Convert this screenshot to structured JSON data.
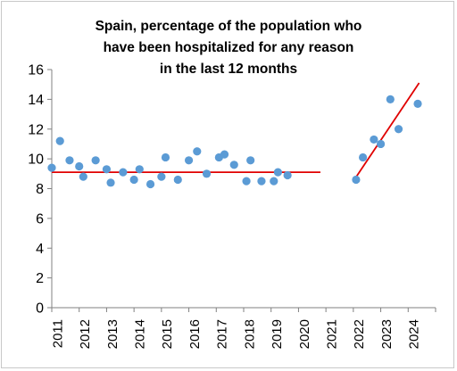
{
  "chart_data": {
    "type": "scatter",
    "title": [
      "Spain, percentage of the population who",
      "have been hospitalized for any reason",
      "in the last 12 months"
    ],
    "xlabel": "",
    "ylabel": "",
    "ylim": [
      0,
      16
    ],
    "yticks": [
      "0",
      "2",
      "4",
      "6",
      "8",
      "10",
      "12",
      "14",
      "16"
    ],
    "xlim": [
      2011,
      2025
    ],
    "xticks": [
      "2011",
      "2012",
      "2013",
      "2014",
      "2015",
      "2016",
      "2017",
      "2018",
      "2019",
      "2020",
      "2021",
      "2022",
      "2023",
      "2024"
    ],
    "grid": false,
    "legend": "none",
    "series": [
      {
        "color": "#5b9bd5",
        "points": [
          {
            "x": 2011.0,
            "y": 9.4
          },
          {
            "x": 2011.3,
            "y": 11.2
          },
          {
            "x": 2011.65,
            "y": 9.9
          },
          {
            "x": 2012.0,
            "y": 9.5
          },
          {
            "x": 2012.15,
            "y": 8.8
          },
          {
            "x": 2012.6,
            "y": 9.9
          },
          {
            "x": 2013.0,
            "y": 9.3
          },
          {
            "x": 2013.15,
            "y": 8.4
          },
          {
            "x": 2013.6,
            "y": 9.1
          },
          {
            "x": 2014.0,
            "y": 8.6
          },
          {
            "x": 2014.2,
            "y": 9.3
          },
          {
            "x": 2014.6,
            "y": 8.3
          },
          {
            "x": 2015.0,
            "y": 8.8
          },
          {
            "x": 2015.15,
            "y": 10.1
          },
          {
            "x": 2015.6,
            "y": 8.6
          },
          {
            "x": 2016.0,
            "y": 9.9
          },
          {
            "x": 2016.3,
            "y": 10.5
          },
          {
            "x": 2016.65,
            "y": 9.0
          },
          {
            "x": 2017.1,
            "y": 10.1
          },
          {
            "x": 2017.3,
            "y": 10.3
          },
          {
            "x": 2017.65,
            "y": 9.6
          },
          {
            "x": 2018.1,
            "y": 8.5
          },
          {
            "x": 2018.25,
            "y": 9.9
          },
          {
            "x": 2018.65,
            "y": 8.5
          },
          {
            "x": 2019.1,
            "y": 8.5
          },
          {
            "x": 2019.25,
            "y": 9.1
          },
          {
            "x": 2019.6,
            "y": 8.9
          },
          {
            "x": 2022.1,
            "y": 8.6
          },
          {
            "x": 2022.35,
            "y": 10.1
          },
          {
            "x": 2022.75,
            "y": 11.3
          },
          {
            "x": 2023.0,
            "y": 11.0
          },
          {
            "x": 2023.35,
            "y": 14.0
          },
          {
            "x": 2023.65,
            "y": 12.0
          },
          {
            "x": 2024.35,
            "y": 13.7
          }
        ]
      }
    ],
    "trend_lines": [
      {
        "color": "#e00000",
        "x": [
          2011,
          2020.8
        ],
        "y": [
          9.1,
          9.1
        ]
      },
      {
        "color": "#e00000",
        "x": [
          2022.0,
          2024.4
        ],
        "y": [
          8.5,
          15.1
        ]
      }
    ]
  }
}
